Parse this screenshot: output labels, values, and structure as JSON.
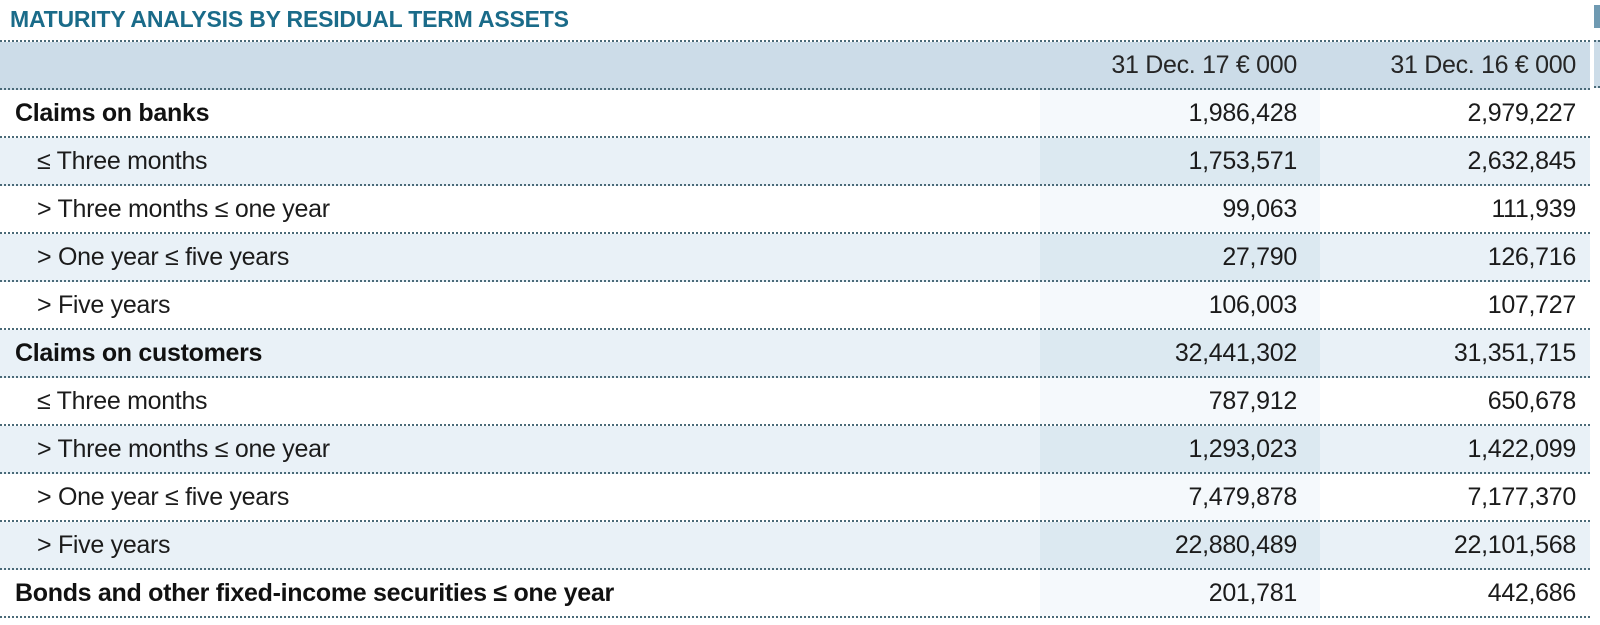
{
  "page": {
    "title": "MATURITY ANALYSIS BY RESIDUAL TERM ASSETS"
  },
  "table": {
    "col_headers": {
      "label": "",
      "col17": "31 Dec. 17 € 000",
      "col16": "31 Dec. 16 € 000"
    },
    "rows": [
      {
        "label": "Claims on banks",
        "v17": "1,986,428",
        "v16": "2,979,227"
      },
      {
        "label": "≤ Three months",
        "v17": "1,753,571",
        "v16": "2,632,845"
      },
      {
        "label": "> Three months ≤ one year",
        "v17": "99,063",
        "v16": "111,939"
      },
      {
        "label": "> One year ≤ five years",
        "v17": "27,790",
        "v16": "126,716"
      },
      {
        "label": "> Five years",
        "v17": "106,003",
        "v16": "107,727"
      },
      {
        "label": "Claims on customers",
        "v17": "32,441,302",
        "v16": "31,351,715"
      },
      {
        "label": "≤ Three months",
        "v17": "787,912",
        "v16": "650,678"
      },
      {
        "label": "> Three months ≤ one year",
        "v17": "1,293,023",
        "v16": "1,422,099"
      },
      {
        "label": "> One year ≤ five years",
        "v17": "7,479,878",
        "v16": "7,177,370"
      },
      {
        "label": "> Five years",
        "v17": "22,880,489",
        "v16": "22,101,568"
      },
      {
        "label": "Bonds and other fixed-income securities ≤ one year",
        "v17": "201,781",
        "v16": "442,686"
      }
    ],
    "colors": {
      "title_color": "#1a6b89",
      "header_bg": "#ccdce8",
      "row_alt_bg": "#e9f1f7",
      "band_on_white": "#f5f9fc",
      "band_on_alt": "#dce9f1",
      "dotted_border": "#4a6a78",
      "text": "#1b1b1b"
    }
  }
}
